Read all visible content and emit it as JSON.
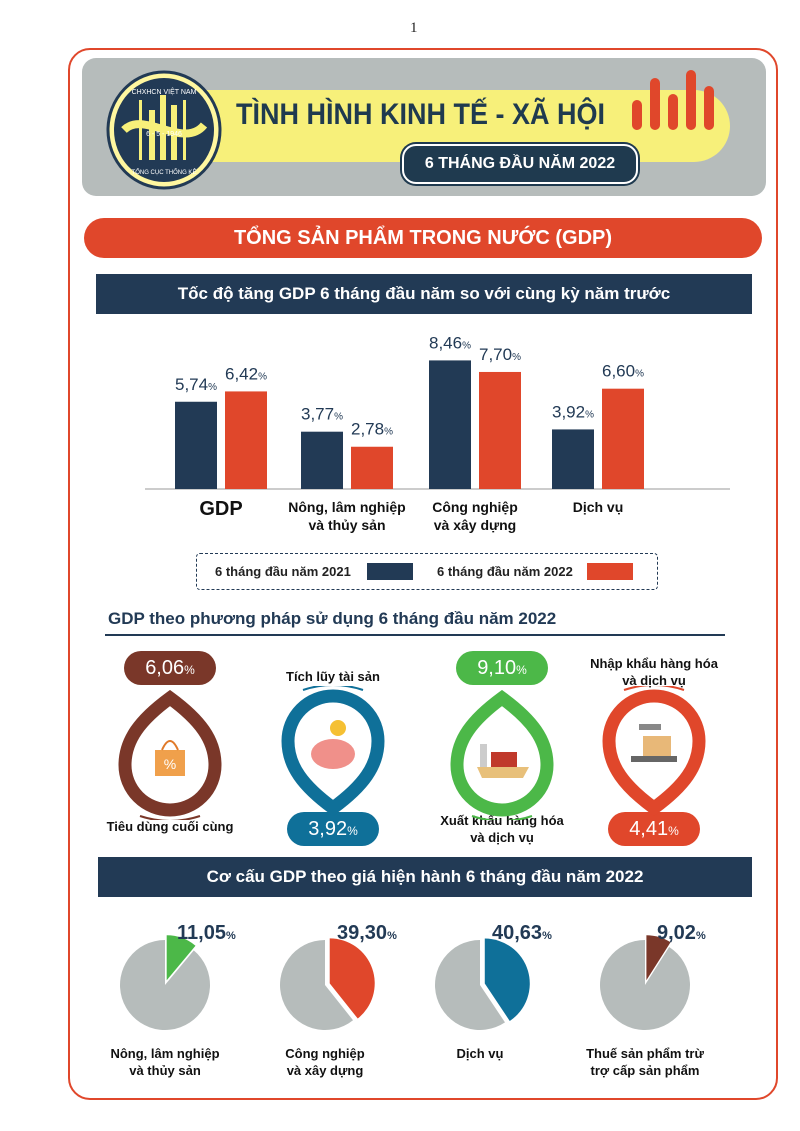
{
  "page_number": "1",
  "header": {
    "title": "TÌNH HÌNH KINH TẾ - XÃ HỘI",
    "subtitle": "6 THÁNG ĐẦU NĂM 2022",
    "logo_text": [
      "CHXHCN VIỆT NAM",
      "6 - 5 - 1946",
      "TỔNG CỤC THỐNG KÊ"
    ]
  },
  "section_title": "TỔNG SẢN PHẨM TRONG NƯỚC (GDP)",
  "colors": {
    "navy": "#223a55",
    "orange": "#e0472b",
    "brown": "#7a3729",
    "blue": "#0f7099",
    "green": "#4cb848",
    "gray": "#b6bcbb"
  },
  "chart_data": [
    {
      "type": "bar",
      "title": "Tốc độ tăng GDP 6 tháng đầu năm so với cùng kỳ năm trước",
      "categories": [
        "GDP",
        "Nông, lâm nghiệp và thủy sản",
        "Công nghiệp và xây dựng",
        "Dịch vụ"
      ],
      "category_lines": [
        [
          "GDP"
        ],
        [
          "Nông, lâm nghiệp",
          "và thủy sản"
        ],
        [
          "Công nghiệp",
          "và xây dựng"
        ],
        [
          "Dịch vụ"
        ]
      ],
      "unit": "%",
      "series": [
        {
          "name": "6 tháng đầu năm 2021",
          "color": "#223a55",
          "values": [
            5.74,
            3.77,
            8.46,
            3.92
          ],
          "labels": [
            "5,74",
            "3,77",
            "8,46",
            "3,92"
          ]
        },
        {
          "name": "6 tháng đầu năm 2022",
          "color": "#e0472b",
          "values": [
            6.42,
            2.78,
            7.7,
            6.6
          ],
          "labels": [
            "6,42",
            "2,78",
            "7,70",
            "6,60"
          ]
        }
      ],
      "legend": "bottom"
    },
    {
      "type": "table",
      "title": "GDP theo phương pháp sử dụng 6 tháng đầu năm 2022",
      "items": [
        {
          "label": "Tiêu dùng cuối cùng",
          "value": "6,06",
          "color": "#7a3729",
          "icon": "shopping-bag-icon"
        },
        {
          "label": "Tích lũy tài sản",
          "value": "3,92",
          "color": "#0f7099",
          "icon": "piggy-bank-icon"
        },
        {
          "label": "Xuất khẩu hàng hóa và dịch vụ",
          "label_lines": [
            "Xuất khẩu hàng hóa",
            "và dịch vụ"
          ],
          "value": "9,10",
          "color": "#4cb848",
          "icon": "cargo-ship-icon"
        },
        {
          "label": "Nhập khẩu hàng hóa và dịch vụ",
          "label_lines": [
            "Nhập khẩu hàng hóa",
            "và dịch vụ"
          ],
          "value": "4,41",
          "color": "#e0472b",
          "icon": "scale-boxes-icon"
        }
      ],
      "unit": "%"
    },
    {
      "type": "pie",
      "title": "Cơ cấu GDP theo giá hiện hành 6 tháng đầu năm 2022",
      "unit": "%",
      "slices": [
        {
          "label_lines": [
            "Nông, lâm nghiệp",
            "và thủy sản"
          ],
          "value": 11.05,
          "text": "11,05",
          "color": "#4cb848"
        },
        {
          "label_lines": [
            "Công nghiệp",
            "và xây dựng"
          ],
          "value": 39.3,
          "text": "39,30",
          "color": "#e0472b"
        },
        {
          "label_lines": [
            "Dịch vụ"
          ],
          "value": 40.63,
          "text": "40,63",
          "color": "#0f7099"
        },
        {
          "label_lines": [
            "Thuế sản phẩm trừ",
            "trợ cấp sản phẩm"
          ],
          "value": 9.02,
          "text": "9,02",
          "color": "#7a3729"
        }
      ],
      "rest_color": "#b6bcbb"
    }
  ]
}
